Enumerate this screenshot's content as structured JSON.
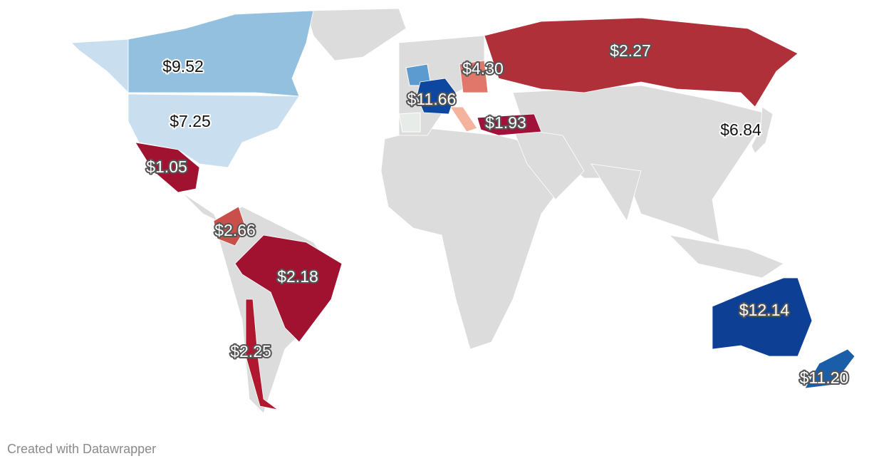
{
  "regions": [
    {
      "label": "$9.52",
      "value": 9.52,
      "color": "#93c0df"
    },
    {
      "label": "$7.25",
      "value": 7.25,
      "color": "#c9dff0"
    },
    {
      "label": "$1.05",
      "value": 1.05,
      "color": "#a0122f"
    },
    {
      "label": "$2.66",
      "value": 2.66,
      "color": "#c9504a"
    },
    {
      "label": "$2.18",
      "value": 2.18,
      "color": "#a0122f"
    },
    {
      "label": "$2.25",
      "value": 2.25,
      "color": "#b0182f"
    },
    {
      "label": "$11.66",
      "value": 11.66,
      "color": "#0d47a0"
    },
    {
      "label": "$4.30",
      "value": 4.3,
      "color": "#e0776a"
    },
    {
      "label": "$2.27",
      "value": 2.27,
      "color": "#b0303a"
    },
    {
      "label": "$1.93",
      "value": 1.93,
      "color": "#a0123a"
    },
    {
      "label": "$6.84",
      "value": 6.84,
      "color": "#dcdcdc"
    },
    {
      "label": "$12.14",
      "value": 12.14,
      "color": "#0d3f94"
    },
    {
      "label": "$11.20",
      "value": 11.2,
      "color": "#1a5da8"
    }
  ],
  "credit": "Created with Datawrapper"
}
